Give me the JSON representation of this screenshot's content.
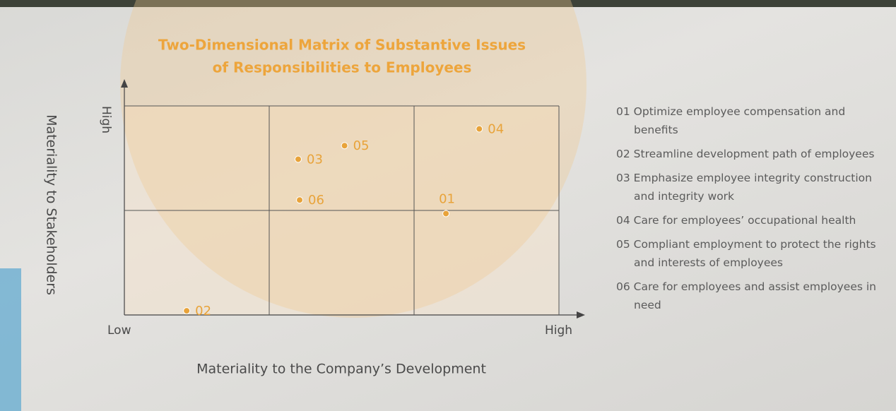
{
  "chart_data": {
    "type": "scatter",
    "title": [
      "Two-Dimensional Matrix of Substantive Issues",
      "of Responsibilities to Employees"
    ],
    "x_label": "Materiality to the Company’s Development",
    "y_label": "Materiality to Stakeholders",
    "color": "#e8a33a",
    "xlim": [
      0,
      3
    ],
    "ylim": [
      0,
      2
    ],
    "xticks": [
      {
        "value": 0,
        "label": "Low"
      },
      {
        "value": 1,
        "label": null
      },
      {
        "value": 2,
        "label": null
      },
      {
        "value": 3,
        "label": "High"
      }
    ],
    "yticks": [
      {
        "value": 1,
        "label": null
      },
      {
        "value": 2,
        "label": "High"
      }
    ],
    "grid": true,
    "points": [
      {
        "label": "01",
        "x": 2.22,
        "y": 0.97,
        "description": "Optimize employee compensation and benefits"
      },
      {
        "label": "02",
        "x": 0.43,
        "y": 0.04,
        "description": "Streamline development path of employees"
      },
      {
        "label": "03",
        "x": 1.2,
        "y": 1.49,
        "description": "Emphasize employee integrity construction and integrity work"
      },
      {
        "label": "04",
        "x": 2.45,
        "y": 1.78,
        "description": "Care for employees’ occupational health"
      },
      {
        "label": "05",
        "x": 1.52,
        "y": 1.62,
        "description": "Compliant employment to protect the rights and interests of employees"
      },
      {
        "label": "06",
        "x": 1.21,
        "y": 1.1,
        "description": "Care for employees and assist employees in need"
      }
    ]
  }
}
